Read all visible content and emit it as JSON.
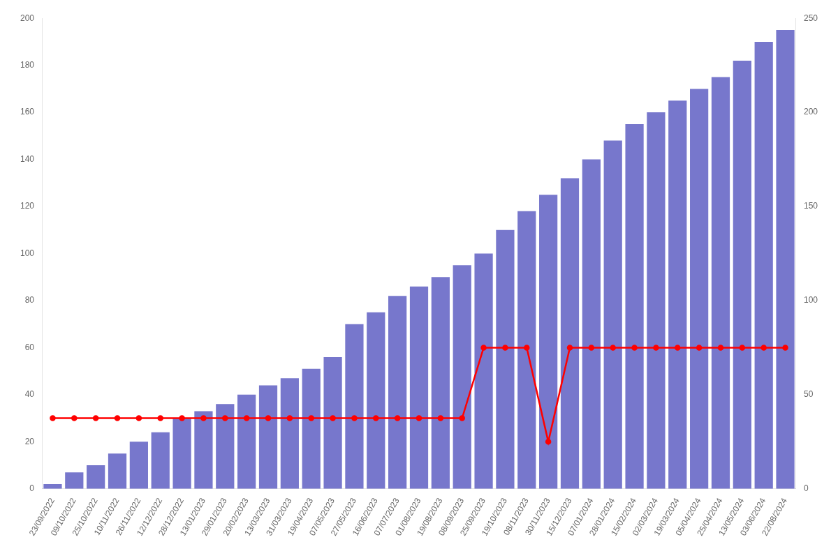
{
  "chart_data": {
    "type": "bar",
    "categories": [
      "23/09/2022",
      "09/10/2022",
      "25/10/2022",
      "10/11/2022",
      "26/11/2022",
      "12/12/2022",
      "28/12/2022",
      "13/01/2023",
      "29/01/2023",
      "20/02/2023",
      "13/03/2023",
      "31/03/2023",
      "19/04/2023",
      "07/05/2023",
      "27/05/2023",
      "16/06/2023",
      "07/07/2023",
      "01/08/2023",
      "19/08/2023",
      "08/09/2023",
      "25/09/2023",
      "19/10/2023",
      "08/11/2023",
      "30/11/2023",
      "15/12/2023",
      "07/01/2024",
      "28/01/2024",
      "15/02/2024",
      "02/03/2024",
      "19/03/2024",
      "05/04/2024",
      "25/04/2024",
      "13/05/2024",
      "03/06/2024",
      "22/08/2024"
    ],
    "series": [
      {
        "type": "bar",
        "color": "#7777cc",
        "values": [
          2,
          7,
          10,
          15,
          20,
          24,
          30,
          33,
          36,
          40,
          44,
          47,
          51,
          56,
          70,
          75,
          82,
          86,
          90,
          95,
          100,
          110,
          118,
          125,
          132,
          140,
          148,
          155,
          160,
          165,
          170,
          175,
          182,
          190,
          195
        ]
      },
      {
        "type": "line",
        "color": "#ff0000",
        "marker": "circle",
        "values": [
          30,
          30,
          30,
          30,
          30,
          30,
          30,
          30,
          30,
          30,
          30,
          30,
          30,
          30,
          30,
          30,
          30,
          30,
          30,
          30,
          60,
          60,
          60,
          20,
          60,
          60,
          60,
          60,
          60,
          60,
          60,
          60,
          60,
          60,
          60
        ]
      }
    ],
    "ylim": [
      0,
      200
    ],
    "yticks": [
      0,
      20,
      40,
      60,
      80,
      100,
      120,
      140,
      160,
      180,
      200
    ],
    "y2lim": [
      0,
      250
    ],
    "y2ticks": [
      0,
      50,
      100,
      150,
      200,
      250
    ],
    "grid": false
  }
}
